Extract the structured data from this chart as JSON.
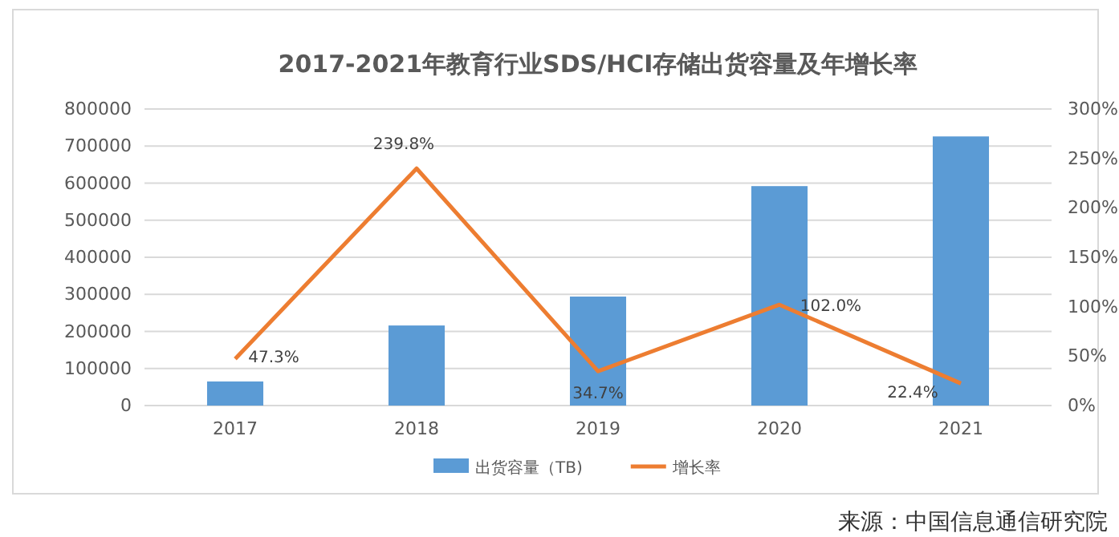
{
  "chart_data": {
    "type": "bar",
    "title": "2017-2021年教育行业SDS/HCI存储出货容量及年增长率",
    "categories": [
      "2017",
      "2018",
      "2019",
      "2020",
      "2021"
    ],
    "series": [
      {
        "name": "出货容量（TB)",
        "color": "#5b9bd5",
        "values": [
          65000,
          216000,
          294000,
          592000,
          726000
        ]
      },
      {
        "name": "增长率",
        "type": "line",
        "axis": "y2",
        "color": "#ed7d31",
        "values": [
          47.3,
          239.8,
          34.7,
          102.0,
          22.4
        ],
        "value_labels": [
          "47.3%",
          "239.8%",
          "34.7%",
          "102.0%",
          "22.4%"
        ]
      }
    ],
    "ylim": [
      0,
      800000
    ],
    "yticks": [
      0,
      100000,
      200000,
      300000,
      400000,
      500000,
      600000,
      700000,
      800000
    ],
    "y2lim": [
      0,
      300
    ],
    "y2ticks": [
      {
        "value": 0,
        "label": "0%"
      },
      {
        "value": 50,
        "label": "50%"
      },
      {
        "value": 100,
        "label": "100%"
      },
      {
        "value": 150,
        "label": "150%"
      },
      {
        "value": 200,
        "label": "200%"
      },
      {
        "value": 250,
        "label": "250%"
      },
      {
        "value": 300,
        "label": "300%"
      }
    ],
    "grid": "y",
    "legend": "bottom",
    "annotations": [
      "来源：中国信息通信研究院"
    ]
  }
}
